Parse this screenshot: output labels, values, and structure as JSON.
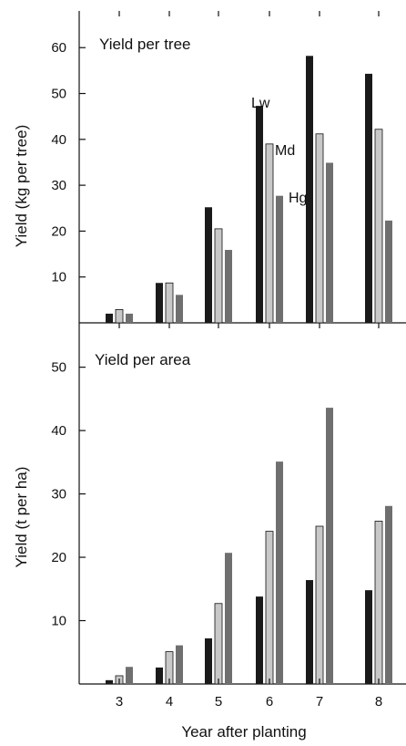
{
  "colors": {
    "Lw": "#1a1a1a",
    "Md": "#c8c8c8",
    "Hg": "#6f6f6f"
  },
  "chart_data": [
    {
      "type": "bar",
      "title": "Yield per tree",
      "xlabel": "",
      "ylabel": "Yield (kg per tree)",
      "categories": [
        "3",
        "4",
        "5",
        "6",
        "7",
        "8"
      ],
      "ylim": [
        0,
        68
      ],
      "yticks": [
        "10",
        "20",
        "30",
        "40",
        "50",
        "60"
      ],
      "series": [
        {
          "name": "Lw",
          "values": [
            2,
            8.7,
            25.2,
            47.3,
            58.2,
            54.3
          ]
        },
        {
          "name": "Md",
          "values": [
            2.9,
            8.7,
            20.5,
            39,
            41.2,
            42.2
          ]
        },
        {
          "name": "Hg",
          "values": [
            2,
            6.1,
            15.9,
            27.7,
            34.9,
            22.3
          ]
        }
      ]
    },
    {
      "type": "bar",
      "title": "Yield per area",
      "xlabel": "Year after planting",
      "ylabel": "Yield (t per ha)",
      "categories": [
        "3",
        "4",
        "5",
        "6",
        "7",
        "8"
      ],
      "ylim": [
        0,
        57
      ],
      "yticks": [
        "10",
        "20",
        "30",
        "40",
        "50"
      ],
      "series": [
        {
          "name": "Lw",
          "values": [
            0.6,
            2.6,
            7.2,
            13.8,
            16.4,
            14.8
          ]
        },
        {
          "name": "Md",
          "values": [
            1.3,
            5.1,
            12.7,
            24.1,
            24.9,
            25.7
          ]
        },
        {
          "name": "Hg",
          "values": [
            2.7,
            6.1,
            20.7,
            35.1,
            43.6,
            28.1
          ]
        }
      ]
    }
  ]
}
